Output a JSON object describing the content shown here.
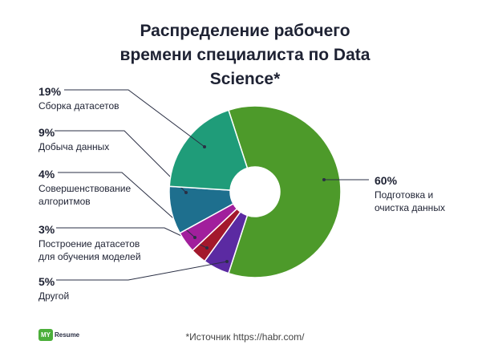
{
  "chart_data": {
    "type": "donut",
    "title": "Распределение рабочего времени специалиста по Data Science*",
    "categories": [
      "Подготовка и очистка данных",
      "Другой",
      "Построение датасетов для обучения моделей",
      "Совершенствование алгоритмов",
      "Добыча данных",
      "Сборка датасетов"
    ],
    "values": [
      60,
      5,
      3,
      4,
      9,
      19
    ],
    "value_labels": [
      "60%",
      "5%",
      "3%",
      "4%",
      "9%",
      "19%"
    ],
    "colors": [
      "#4d9a2a",
      "#5b2aa2",
      "#a3182c",
      "#a11f9c",
      "#1e6f8e",
      "#1f9c79"
    ],
    "note": "*Источник https://habr.com/"
  },
  "brand": {
    "mark": "MY",
    "name": "Resume"
  }
}
